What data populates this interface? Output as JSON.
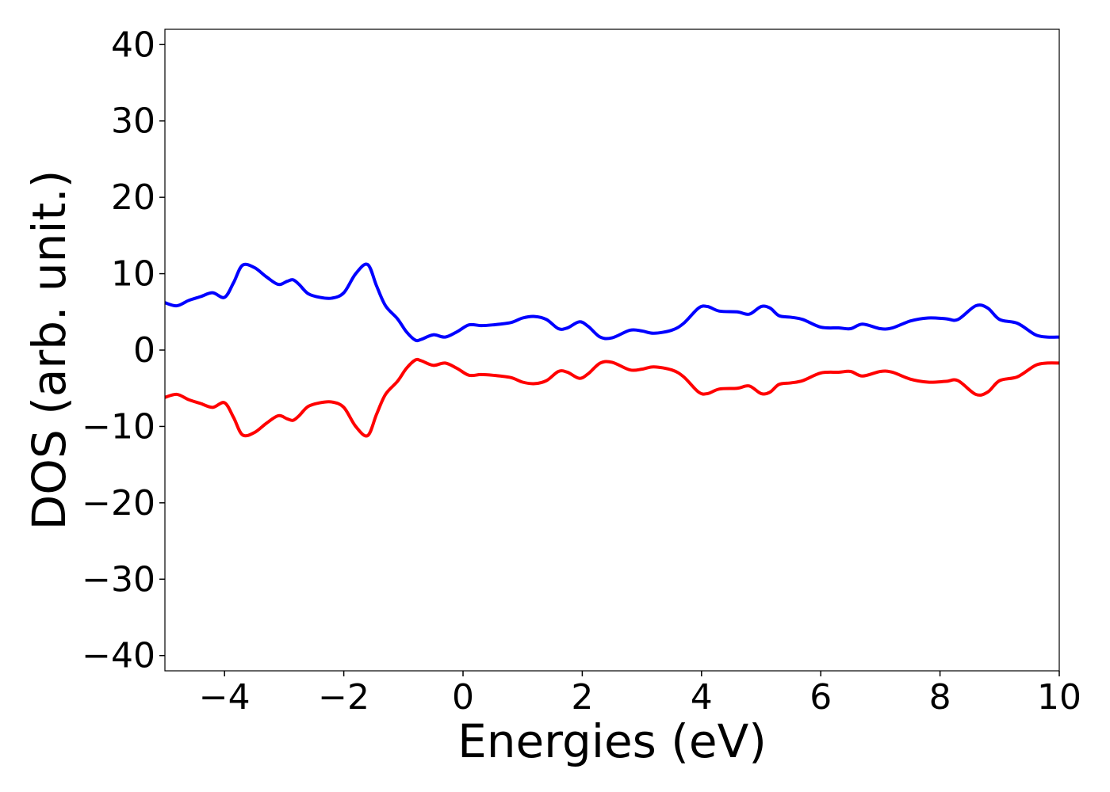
{
  "chart_data": {
    "type": "line",
    "xlabel": "Energies (eV)",
    "ylabel": "DOS (arb. unit.)",
    "xlim": [
      -5,
      10
    ],
    "ylim": [
      -42,
      42
    ],
    "grid": false,
    "legend": "none",
    "x_ticks": [
      -4,
      -2,
      0,
      2,
      4,
      6,
      8,
      10
    ],
    "x_tick_labels": [
      "−4",
      "−2",
      "0",
      "2",
      "4",
      "6",
      "8",
      "10"
    ],
    "y_ticks": [
      -40,
      -30,
      -20,
      -10,
      0,
      10,
      20,
      30,
      40
    ],
    "y_tick_labels": [
      "−40",
      "−30",
      "−20",
      "−10",
      "0",
      "10",
      "20",
      "30",
      "40"
    ],
    "series": [
      {
        "color": "#0000ff",
        "x": [
          -5.0,
          -4.8,
          -4.6,
          -4.4,
          -4.2,
          -4.0,
          -3.85,
          -3.7,
          -3.5,
          -3.3,
          -3.1,
          -2.95,
          -2.85,
          -2.75,
          -2.6,
          -2.4,
          -2.2,
          -2.0,
          -1.8,
          -1.6,
          -1.45,
          -1.3,
          -1.1,
          -0.95,
          -0.8,
          -0.7,
          -0.5,
          -0.3,
          -0.1,
          0.1,
          0.3,
          0.5,
          0.8,
          1.0,
          1.2,
          1.4,
          1.6,
          1.75,
          1.95,
          2.1,
          2.3,
          2.5,
          2.8,
          3.0,
          3.2,
          3.5,
          3.7,
          3.95,
          4.1,
          4.3,
          4.6,
          4.8,
          5.0,
          5.15,
          5.3,
          5.5,
          5.7,
          6.0,
          6.3,
          6.5,
          6.7,
          7.0,
          7.2,
          7.5,
          7.8,
          8.1,
          8.3,
          8.6,
          8.8,
          9.0,
          9.3,
          9.6,
          9.8,
          10.0
        ],
        "y": [
          6.2,
          5.8,
          6.5,
          7.0,
          7.5,
          6.9,
          8.8,
          11.1,
          10.8,
          9.6,
          8.6,
          9.0,
          9.2,
          8.6,
          7.4,
          6.9,
          6.8,
          7.5,
          10.0,
          11.2,
          8.4,
          5.8,
          4.1,
          2.4,
          1.3,
          1.4,
          2.0,
          1.7,
          2.4,
          3.3,
          3.2,
          3.3,
          3.6,
          4.2,
          4.4,
          4.0,
          2.8,
          2.9,
          3.7,
          3.1,
          1.7,
          1.6,
          2.6,
          2.5,
          2.2,
          2.6,
          3.5,
          5.5,
          5.7,
          5.1,
          5.0,
          4.7,
          5.7,
          5.5,
          4.5,
          4.3,
          4.0,
          3.0,
          2.9,
          2.8,
          3.4,
          2.8,
          2.9,
          3.8,
          4.2,
          4.1,
          4.0,
          5.8,
          5.5,
          4.0,
          3.5,
          2.0,
          1.7,
          1.7
        ]
      },
      {
        "color": "#ff0000",
        "x": [
          -5.0,
          -4.8,
          -4.6,
          -4.4,
          -4.2,
          -4.0,
          -3.85,
          -3.7,
          -3.5,
          -3.3,
          -3.1,
          -2.95,
          -2.85,
          -2.75,
          -2.6,
          -2.4,
          -2.2,
          -2.0,
          -1.8,
          -1.6,
          -1.45,
          -1.3,
          -1.1,
          -0.95,
          -0.8,
          -0.7,
          -0.5,
          -0.3,
          -0.1,
          0.1,
          0.3,
          0.5,
          0.8,
          1.0,
          1.2,
          1.4,
          1.6,
          1.75,
          1.95,
          2.1,
          2.3,
          2.5,
          2.8,
          3.0,
          3.2,
          3.5,
          3.7,
          3.95,
          4.1,
          4.3,
          4.6,
          4.8,
          5.0,
          5.15,
          5.3,
          5.5,
          5.7,
          6.0,
          6.3,
          6.5,
          6.7,
          7.0,
          7.2,
          7.5,
          7.8,
          8.1,
          8.3,
          8.6,
          8.8,
          9.0,
          9.3,
          9.6,
          9.8,
          10.0
        ],
        "y": [
          -6.2,
          -5.8,
          -6.5,
          -7.0,
          -7.5,
          -6.9,
          -8.8,
          -11.1,
          -10.8,
          -9.6,
          -8.6,
          -9.0,
          -9.2,
          -8.6,
          -7.4,
          -6.9,
          -6.8,
          -7.5,
          -10.0,
          -11.2,
          -8.4,
          -5.8,
          -4.1,
          -2.4,
          -1.3,
          -1.4,
          -2.0,
          -1.7,
          -2.4,
          -3.3,
          -3.2,
          -3.3,
          -3.6,
          -4.2,
          -4.4,
          -4.0,
          -2.8,
          -2.9,
          -3.7,
          -3.1,
          -1.7,
          -1.6,
          -2.6,
          -2.5,
          -2.2,
          -2.6,
          -3.5,
          -5.5,
          -5.7,
          -5.1,
          -5.0,
          -4.7,
          -5.7,
          -5.5,
          -4.5,
          -4.3,
          -4.0,
          -3.0,
          -2.9,
          -2.8,
          -3.4,
          -2.8,
          -2.9,
          -3.8,
          -4.2,
          -4.1,
          -4.0,
          -5.8,
          -5.5,
          -4.0,
          -3.5,
          -2.0,
          -1.7,
          -1.7
        ]
      }
    ]
  }
}
